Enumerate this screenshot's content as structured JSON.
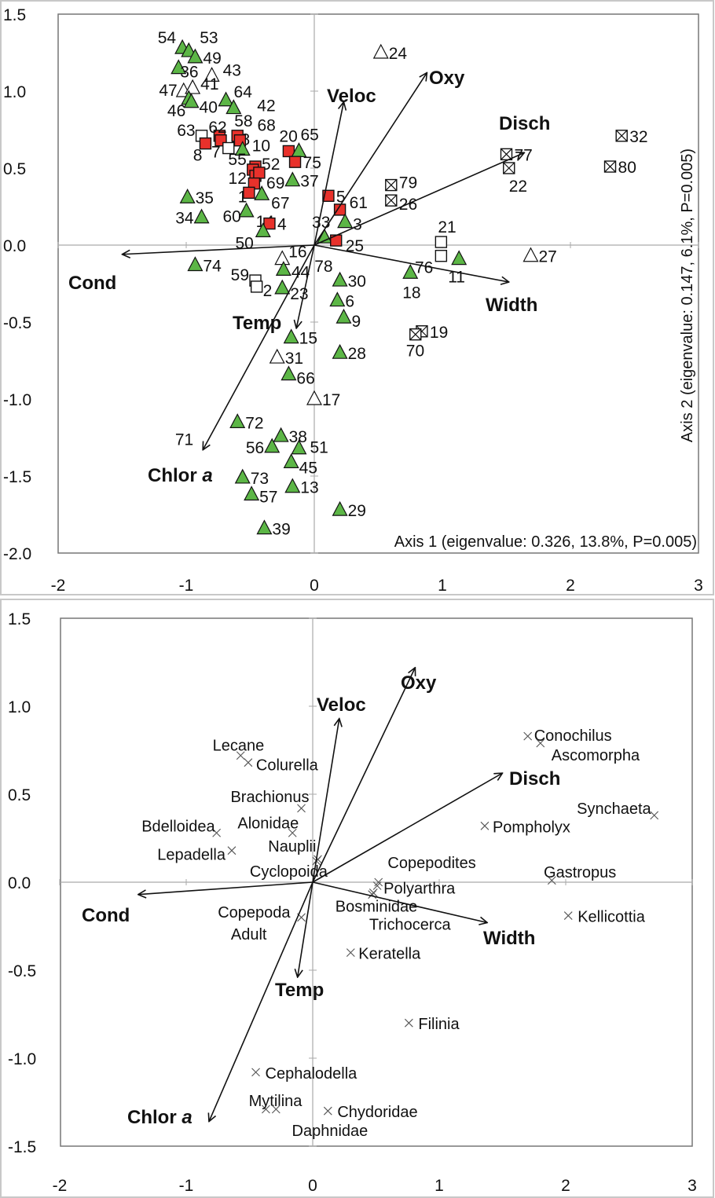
{
  "chart_data": [
    {
      "type": "scatter",
      "title": "",
      "xlabel": "Axis 1 (eigenvalue: 0.326, 13.8%, P=0.005)",
      "ylabel": "Axis 2 (eigenvalue: 0.147, 6.1%, P=0.005)",
      "xlim": [
        -2,
        3
      ],
      "ylim": [
        -2.0,
        1.5
      ],
      "xticks": [
        "-2",
        "-1",
        "0",
        "1",
        "2",
        "3"
      ],
      "yticks": [
        "1.5",
        "1.0",
        "0.5",
        "0.0",
        "-0.5",
        "-1.0",
        "-1.5",
        "-2.0"
      ],
      "grid": false,
      "colors": {
        "green": "#5cb646",
        "red": "#e8312b",
        "white": "#ffffff"
      },
      "vectors": [
        {
          "label": "Veloc",
          "x": 0.23,
          "y": 0.93
        },
        {
          "label": "Oxy",
          "x": 0.88,
          "y": 1.12
        },
        {
          "label": "Disch",
          "x": 1.64,
          "y": 0.6
        },
        {
          "label": "Width",
          "x": 1.52,
          "y": -0.24
        },
        {
          "label": "Cond",
          "x": -1.5,
          "y": -0.06
        },
        {
          "label": "Temp",
          "x": -0.14,
          "y": -0.54
        },
        {
          "label": "Chlor a",
          "x": -0.87,
          "y": -1.33
        }
      ],
      "points": [
        {
          "label": "54",
          "x": -1.03,
          "y": 1.28,
          "marker": "tri-green"
        },
        {
          "label": "53",
          "x": -0.98,
          "y": 1.26,
          "marker": "tri-green"
        },
        {
          "label": "49",
          "x": -0.93,
          "y": 1.22,
          "marker": "tri-green"
        },
        {
          "label": "36",
          "x": -1.06,
          "y": 1.15,
          "marker": "tri-green"
        },
        {
          "label": "43",
          "x": -0.8,
          "y": 1.1,
          "marker": "tri-white"
        },
        {
          "label": "47",
          "x": -1.02,
          "y": 1.0,
          "marker": "tri-white"
        },
        {
          "label": "41",
          "x": -0.95,
          "y": 1.02,
          "marker": "tri-white"
        },
        {
          "label": "46",
          "x": -0.98,
          "y": 0.95,
          "marker": "tri-green"
        },
        {
          "label": "40",
          "x": -0.96,
          "y": 0.93,
          "marker": "tri-green"
        },
        {
          "label": "64",
          "x": -0.69,
          "y": 0.94,
          "marker": "tri-green"
        },
        {
          "label": "42",
          "x": -0.63,
          "y": 0.89,
          "marker": "tri-green"
        },
        {
          "label": "63",
          "x": -0.88,
          "y": 0.71,
          "marker": "sq-white"
        },
        {
          "label": "8",
          "x": -0.85,
          "y": 0.66,
          "marker": "sq-red"
        },
        {
          "label": "62",
          "x": -0.74,
          "y": 0.71,
          "marker": "sq-red"
        },
        {
          "label": "7",
          "x": -0.73,
          "y": 0.68,
          "marker": "sq-red"
        },
        {
          "label": "48",
          "x": -0.67,
          "y": 0.63,
          "marker": "sq-white"
        },
        {
          "label": "58",
          "x": -0.6,
          "y": 0.71,
          "marker": "sq-red"
        },
        {
          "label": "68",
          "x": -0.58,
          "y": 0.68,
          "marker": "sq-red"
        },
        {
          "label": "10",
          "x": -0.56,
          "y": 0.62,
          "marker": "tri-green"
        },
        {
          "label": "20",
          "x": -0.2,
          "y": 0.61,
          "marker": "sq-red"
        },
        {
          "label": "65",
          "x": -0.12,
          "y": 0.61,
          "marker": "tri-green"
        },
        {
          "label": "75",
          "x": -0.15,
          "y": 0.54,
          "marker": "sq-red"
        },
        {
          "label": "52",
          "x": -0.46,
          "y": 0.51,
          "marker": "sq-red"
        },
        {
          "label": "55",
          "x": -0.48,
          "y": 0.49,
          "marker": "sq-red"
        },
        {
          "label": "69",
          "x": -0.46,
          "y": 0.45,
          "marker": "sq-red"
        },
        {
          "label": "12",
          "x": -0.43,
          "y": 0.47,
          "marker": "sq-red"
        },
        {
          "label": "1",
          "x": -0.47,
          "y": 0.4,
          "marker": "sq-red"
        },
        {
          "label": "60",
          "x": -0.51,
          "y": 0.34,
          "marker": "sq-red"
        },
        {
          "label": "37",
          "x": -0.17,
          "y": 0.42,
          "marker": "tri-green"
        },
        {
          "label": "67",
          "x": -0.41,
          "y": 0.33,
          "marker": "tri-green"
        },
        {
          "label": "35",
          "x": -0.99,
          "y": 0.31,
          "marker": "tri-green"
        },
        {
          "label": "34",
          "x": -0.88,
          "y": 0.18,
          "marker": "tri-green"
        },
        {
          "label": "14",
          "x": -0.53,
          "y": 0.22,
          "marker": "tri-green"
        },
        {
          "label": "4",
          "x": -0.35,
          "y": 0.14,
          "marker": "sq-red"
        },
        {
          "label": "50",
          "x": -0.4,
          "y": 0.09,
          "marker": "tri-green"
        },
        {
          "label": "5",
          "x": 0.11,
          "y": 0.32,
          "marker": "sq-red"
        },
        {
          "label": "61",
          "x": 0.2,
          "y": 0.23,
          "marker": "sq-red"
        },
        {
          "label": "3",
          "x": 0.24,
          "y": 0.15,
          "marker": "tri-green"
        },
        {
          "label": "33",
          "x": 0.08,
          "y": 0.05,
          "marker": "tri-green"
        },
        {
          "label": "25",
          "x": 0.17,
          "y": 0.03,
          "marker": "sq-red"
        },
        {
          "label": "16",
          "x": -0.25,
          "y": -0.09,
          "marker": "tri-white"
        },
        {
          "label": "44",
          "x": -0.24,
          "y": -0.16,
          "marker": "tri-green"
        },
        {
          "label": "78",
          "x": 0.02,
          "y": -0.02,
          "marker": "hidden"
        },
        {
          "label": "59",
          "x": -0.46,
          "y": -0.23,
          "marker": "sq-white"
        },
        {
          "label": "2",
          "x": -0.45,
          "y": -0.27,
          "marker": "sq-white"
        },
        {
          "label": "23",
          "x": -0.25,
          "y": -0.28,
          "marker": "tri-green"
        },
        {
          "label": "74",
          "x": -0.93,
          "y": -0.13,
          "marker": "tri-green"
        },
        {
          "label": "30",
          "x": 0.2,
          "y": -0.23,
          "marker": "tri-green"
        },
        {
          "label": "6",
          "x": 0.18,
          "y": -0.36,
          "marker": "tri-green"
        },
        {
          "label": "9",
          "x": 0.23,
          "y": -0.47,
          "marker": "tri-green"
        },
        {
          "label": "15",
          "x": -0.18,
          "y": -0.6,
          "marker": "tri-green"
        },
        {
          "label": "28",
          "x": 0.2,
          "y": -0.7,
          "marker": "tri-green"
        },
        {
          "label": "31",
          "x": -0.29,
          "y": -0.73,
          "marker": "tri-white"
        },
        {
          "label": "66",
          "x": -0.2,
          "y": -0.84,
          "marker": "tri-green"
        },
        {
          "label": "17",
          "x": 0.0,
          "y": -1.0,
          "marker": "tri-white"
        },
        {
          "label": "72",
          "x": -0.6,
          "y": -1.15,
          "marker": "tri-green"
        },
        {
          "label": "71",
          "x": -0.87,
          "y": -1.33,
          "marker": "hidden"
        },
        {
          "label": "38",
          "x": -0.26,
          "y": -1.24,
          "marker": "tri-green"
        },
        {
          "label": "56",
          "x": -0.33,
          "y": -1.31,
          "marker": "tri-green"
        },
        {
          "label": "51",
          "x": -0.12,
          "y": -1.32,
          "marker": "tri-green"
        },
        {
          "label": "45",
          "x": -0.18,
          "y": -1.41,
          "marker": "tri-green"
        },
        {
          "label": "73",
          "x": -0.56,
          "y": -1.51,
          "marker": "tri-green"
        },
        {
          "label": "57",
          "x": -0.49,
          "y": -1.62,
          "marker": "tri-green"
        },
        {
          "label": "13",
          "x": -0.17,
          "y": -1.57,
          "marker": "tri-green"
        },
        {
          "label": "29",
          "x": 0.2,
          "y": -1.72,
          "marker": "tri-green"
        },
        {
          "label": "39",
          "x": -0.39,
          "y": -1.84,
          "marker": "tri-green"
        },
        {
          "label": "24",
          "x": 0.52,
          "y": 1.25,
          "marker": "tri-white"
        },
        {
          "label": "79",
          "x": 0.6,
          "y": 0.39,
          "marker": "sq-x"
        },
        {
          "label": "26",
          "x": 0.6,
          "y": 0.29,
          "marker": "sq-x"
        },
        {
          "label": "77",
          "x": 1.5,
          "y": 0.59,
          "marker": "sq-x"
        },
        {
          "label": "22",
          "x": 1.52,
          "y": 0.5,
          "marker": "sq-x"
        },
        {
          "label": "32",
          "x": 2.4,
          "y": 0.71,
          "marker": "sq-x"
        },
        {
          "label": "80",
          "x": 2.31,
          "y": 0.51,
          "marker": "sq-x"
        },
        {
          "label": "21",
          "x": 0.99,
          "y": 0.02,
          "marker": "sq-white"
        },
        {
          "label": "76",
          "x": 0.99,
          "y": -0.07,
          "marker": "sq-white"
        },
        {
          "label": "11",
          "x": 1.13,
          "y": -0.09,
          "marker": "tri-green"
        },
        {
          "label": "18",
          "x": 0.75,
          "y": -0.18,
          "marker": "tri-green"
        },
        {
          "label": "27",
          "x": 1.69,
          "y": -0.07,
          "marker": "tri-white"
        },
        {
          "label": "19",
          "x": 0.84,
          "y": -0.56,
          "marker": "sq-x"
        },
        {
          "label": "70",
          "x": 0.79,
          "y": -0.58,
          "marker": "sq-x"
        }
      ]
    },
    {
      "type": "scatter",
      "title": "",
      "xlabel": "",
      "ylabel": "",
      "xlim": [
        -2,
        3
      ],
      "ylim": [
        -1.5,
        1.5
      ],
      "xticks": [
        "-2",
        "-1",
        "0",
        "1",
        "2",
        "3"
      ],
      "yticks": [
        "1.5",
        "1.0",
        "0.5",
        "0.0",
        "-0.5",
        "-1.0",
        "-1.5"
      ],
      "grid": false,
      "vectors": [
        {
          "label": "Veloc",
          "x": 0.21,
          "y": 0.93
        },
        {
          "label": "Oxy",
          "x": 0.81,
          "y": 1.22
        },
        {
          "label": "Disch",
          "x": 1.5,
          "y": 0.62
        },
        {
          "label": "Width",
          "x": 1.38,
          "y": -0.23
        },
        {
          "label": "Cond",
          "x": -1.38,
          "y": -0.07
        },
        {
          "label": "Temp",
          "x": -0.12,
          "y": -0.54
        },
        {
          "label": "Chlor a",
          "x": -0.82,
          "y": -1.36
        }
      ],
      "points": [
        {
          "label": "Conochilus",
          "x": 1.7,
          "y": 0.83
        },
        {
          "label": "Ascomorpha",
          "x": 1.8,
          "y": 0.79
        },
        {
          "label": "Lecane",
          "x": -0.57,
          "y": 0.72
        },
        {
          "label": "Colurella",
          "x": -0.51,
          "y": 0.68
        },
        {
          "label": "Brachionus",
          "x": -0.09,
          "y": 0.42
        },
        {
          "label": "Bdelloidea",
          "x": -0.76,
          "y": 0.28
        },
        {
          "label": "Alonidae",
          "x": -0.16,
          "y": 0.28
        },
        {
          "label": "Nauplii",
          "x": 0.04,
          "y": 0.13
        },
        {
          "label": "Lepadella",
          "x": -0.64,
          "y": 0.18
        },
        {
          "label": "Cyclopoida",
          "x": 0.03,
          "y": 0.12
        },
        {
          "label": "Synchaeta",
          "x": 2.7,
          "y": 0.38
        },
        {
          "label": "Pompholyx",
          "x": 1.36,
          "y": 0.32
        },
        {
          "label": "Copepodites",
          "x": 0.52,
          "y": 0.0
        },
        {
          "label": "Polyarthra",
          "x": 0.51,
          "y": -0.02
        },
        {
          "label": "Gastropus",
          "x": 1.89,
          "y": 0.01
        },
        {
          "label": "Bosminidae",
          "x": 0.48,
          "y": -0.06
        },
        {
          "label": "Trichocerca",
          "x": 0.47,
          "y": -0.07
        },
        {
          "label": "Copepoda\nAdult",
          "x": -0.09,
          "y": -0.2
        },
        {
          "label": "Kellicottia",
          "x": 2.02,
          "y": -0.19
        },
        {
          "label": "Keratella",
          "x": 0.3,
          "y": -0.4
        },
        {
          "label": "Filinia",
          "x": 0.76,
          "y": -0.8
        },
        {
          "label": "Cephalodella",
          "x": -0.45,
          "y": -1.08
        },
        {
          "label": "Mytilina",
          "x": -0.37,
          "y": -1.29
        },
        {
          "label": "Daphnidae",
          "x": -0.29,
          "y": -1.29
        },
        {
          "label": "Chydoridae",
          "x": 0.12,
          "y": -1.3
        }
      ]
    }
  ]
}
